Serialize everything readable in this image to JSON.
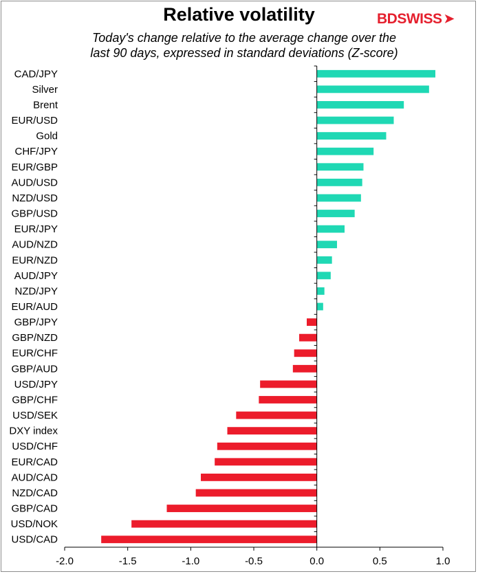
{
  "header": {
    "title": "Relative volatility",
    "subtitle_line1": "Today's change relative to the  average change over the",
    "subtitle_line2": "last 90 days, expressed in standard deviations (Z-score)",
    "logo_text": "BDSWISS",
    "logo_color": "#e5202e"
  },
  "chart_data": {
    "type": "bar",
    "orientation": "horizontal",
    "title": "Relative volatility",
    "subtitle": "Today's change relative to the  average change over the last 90 days, expressed in standard deviations (Z-score)",
    "categories": [
      "CAD/JPY",
      "Silver",
      "Brent",
      "EUR/USD",
      "Gold",
      "CHF/JPY",
      "EUR/GBP",
      "AUD/USD",
      "NZD/USD",
      "GBP/USD",
      "EUR/JPY",
      "AUD/NZD",
      "EUR/NZD",
      "AUD/JPY",
      "NZD/JPY",
      "EUR/AUD",
      "GBP/JPY",
      "GBP/NZD",
      "EUR/CHF",
      "GBP/AUD",
      "USD/JPY",
      "GBP/CHF",
      "USD/SEK",
      "DXY index",
      "USD/CHF",
      "EUR/CAD",
      "AUD/CAD",
      "NZD/CAD",
      "GBP/CAD",
      "USD/NOK",
      "USD/CAD"
    ],
    "values": [
      0.94,
      0.89,
      0.69,
      0.61,
      0.55,
      0.45,
      0.37,
      0.36,
      0.35,
      0.3,
      0.22,
      0.16,
      0.12,
      0.11,
      0.06,
      0.05,
      -0.08,
      -0.14,
      -0.18,
      -0.19,
      -0.45,
      -0.46,
      -0.64,
      -0.71,
      -0.79,
      -0.81,
      -0.92,
      -0.96,
      -1.19,
      -1.47,
      -1.71
    ],
    "xlim": [
      -2.0,
      1.0
    ],
    "xticks": [
      "-2.0",
      "-1.5",
      "-1.0",
      "-0.5",
      "0.0",
      "0.5",
      "1.0"
    ],
    "positive_color": "#1fd8b4",
    "negative_color": "#ec1c2b",
    "grid": false,
    "xlabel": "",
    "ylabel": ""
  }
}
